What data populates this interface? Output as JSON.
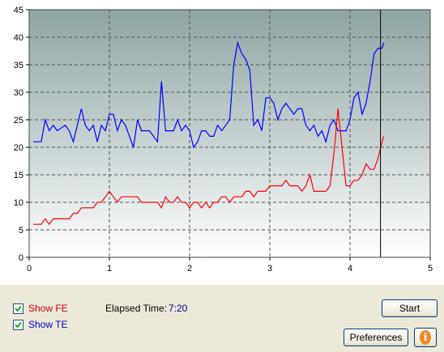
{
  "chart_data": {
    "type": "line",
    "xlim": [
      0,
      5
    ],
    "ylim": [
      0,
      45
    ],
    "xticks": [
      0,
      1,
      2,
      3,
      4,
      5
    ],
    "yticks": [
      0,
      5,
      10,
      15,
      20,
      25,
      30,
      35,
      40,
      45
    ],
    "grid": true,
    "cursor_x": 4.38,
    "series": [
      {
        "color": "#0000ff",
        "points": [
          [
            0.05,
            21
          ],
          [
            0.15,
            21
          ],
          [
            0.2,
            25
          ],
          [
            0.25,
            23
          ],
          [
            0.3,
            24
          ],
          [
            0.35,
            23
          ],
          [
            0.45,
            24
          ],
          [
            0.5,
            23
          ],
          [
            0.55,
            21
          ],
          [
            0.6,
            24
          ],
          [
            0.65,
            27
          ],
          [
            0.7,
            24
          ],
          [
            0.75,
            23
          ],
          [
            0.8,
            24
          ],
          [
            0.85,
            21
          ],
          [
            0.9,
            24
          ],
          [
            0.95,
            23
          ],
          [
            1.0,
            26
          ],
          [
            1.05,
            26
          ],
          [
            1.1,
            23
          ],
          [
            1.15,
            25
          ],
          [
            1.2,
            24
          ],
          [
            1.25,
            22
          ],
          [
            1.3,
            20
          ],
          [
            1.35,
            25
          ],
          [
            1.4,
            23
          ],
          [
            1.5,
            23
          ],
          [
            1.55,
            22
          ],
          [
            1.6,
            21
          ],
          [
            1.65,
            32
          ],
          [
            1.7,
            23
          ],
          [
            1.8,
            23
          ],
          [
            1.85,
            25
          ],
          [
            1.9,
            23
          ],
          [
            1.95,
            24
          ],
          [
            2.0,
            23
          ],
          [
            2.05,
            20
          ],
          [
            2.1,
            21
          ],
          [
            2.15,
            23
          ],
          [
            2.2,
            23
          ],
          [
            2.25,
            22
          ],
          [
            2.3,
            22
          ],
          [
            2.35,
            24
          ],
          [
            2.4,
            23
          ],
          [
            2.45,
            24
          ],
          [
            2.5,
            25
          ],
          [
            2.55,
            35
          ],
          [
            2.6,
            39
          ],
          [
            2.65,
            37
          ],
          [
            2.7,
            36
          ],
          [
            2.75,
            34
          ],
          [
            2.8,
            24
          ],
          [
            2.85,
            25
          ],
          [
            2.9,
            23
          ],
          [
            2.95,
            29
          ],
          [
            3.0,
            29
          ],
          [
            3.05,
            28
          ],
          [
            3.1,
            25
          ],
          [
            3.15,
            27
          ],
          [
            3.2,
            28
          ],
          [
            3.25,
            27
          ],
          [
            3.3,
            26
          ],
          [
            3.35,
            27
          ],
          [
            3.4,
            27
          ],
          [
            3.45,
            24
          ],
          [
            3.5,
            23
          ],
          [
            3.55,
            24
          ],
          [
            3.6,
            22
          ],
          [
            3.65,
            23
          ],
          [
            3.7,
            21
          ],
          [
            3.75,
            24
          ],
          [
            3.8,
            25
          ],
          [
            3.85,
            23
          ],
          [
            3.9,
            23
          ],
          [
            3.95,
            23
          ],
          [
            4.0,
            25
          ],
          [
            4.05,
            29
          ],
          [
            4.1,
            30
          ],
          [
            4.15,
            26
          ],
          [
            4.2,
            28
          ],
          [
            4.25,
            32
          ],
          [
            4.3,
            37
          ],
          [
            4.35,
            38
          ],
          [
            4.4,
            38
          ],
          [
            4.42,
            39
          ]
        ]
      },
      {
        "color": "#ff0000",
        "points": [
          [
            0.05,
            6
          ],
          [
            0.15,
            6
          ],
          [
            0.2,
            7
          ],
          [
            0.25,
            6
          ],
          [
            0.3,
            7
          ],
          [
            0.4,
            7
          ],
          [
            0.5,
            7
          ],
          [
            0.55,
            8
          ],
          [
            0.6,
            8
          ],
          [
            0.65,
            9
          ],
          [
            0.7,
            9
          ],
          [
            0.8,
            9
          ],
          [
            0.85,
            10
          ],
          [
            0.9,
            10
          ],
          [
            0.95,
            11
          ],
          [
            1.0,
            12
          ],
          [
            1.05,
            11
          ],
          [
            1.1,
            10
          ],
          [
            1.15,
            11
          ],
          [
            1.25,
            11
          ],
          [
            1.35,
            11
          ],
          [
            1.4,
            10
          ],
          [
            1.5,
            10
          ],
          [
            1.6,
            10
          ],
          [
            1.65,
            9
          ],
          [
            1.7,
            11
          ],
          [
            1.75,
            10
          ],
          [
            1.8,
            10
          ],
          [
            1.85,
            11
          ],
          [
            1.9,
            10
          ],
          [
            1.95,
            10
          ],
          [
            2.0,
            9
          ],
          [
            2.05,
            10
          ],
          [
            2.1,
            10
          ],
          [
            2.15,
            9
          ],
          [
            2.2,
            10
          ],
          [
            2.25,
            9
          ],
          [
            2.3,
            10
          ],
          [
            2.35,
            10
          ],
          [
            2.4,
            11
          ],
          [
            2.45,
            11
          ],
          [
            2.5,
            10
          ],
          [
            2.55,
            11
          ],
          [
            2.6,
            11
          ],
          [
            2.65,
            11
          ],
          [
            2.7,
            12
          ],
          [
            2.75,
            12
          ],
          [
            2.8,
            11
          ],
          [
            2.85,
            12
          ],
          [
            2.9,
            12
          ],
          [
            2.95,
            12
          ],
          [
            3.0,
            13
          ],
          [
            3.1,
            13
          ],
          [
            3.15,
            13
          ],
          [
            3.2,
            14
          ],
          [
            3.25,
            13
          ],
          [
            3.3,
            13
          ],
          [
            3.35,
            13
          ],
          [
            3.4,
            12
          ],
          [
            3.45,
            13
          ],
          [
            3.5,
            15
          ],
          [
            3.55,
            12
          ],
          [
            3.6,
            12
          ],
          [
            3.65,
            12
          ],
          [
            3.7,
            12
          ],
          [
            3.75,
            13
          ],
          [
            3.8,
            19
          ],
          [
            3.85,
            27
          ],
          [
            3.9,
            20
          ],
          [
            3.95,
            13
          ],
          [
            4.0,
            13
          ],
          [
            4.05,
            14
          ],
          [
            4.1,
            14
          ],
          [
            4.15,
            15
          ],
          [
            4.2,
            17
          ],
          [
            4.25,
            16
          ],
          [
            4.3,
            16
          ],
          [
            4.35,
            18
          ],
          [
            4.4,
            21
          ],
          [
            4.42,
            22
          ]
        ]
      }
    ]
  },
  "controls": {
    "show_fe_label": "Show FE",
    "show_te_label": "Show TE",
    "show_fe_checked": true,
    "show_te_checked": true,
    "elapsed_label": "Elapsed Time:",
    "elapsed_value": "7:20",
    "start_button": "Start",
    "preferences_button": "Preferences",
    "info_icon": "info-icon",
    "fe_color": "#cc0000",
    "te_color": "#0000cc",
    "elapsed_value_color": "#00008b"
  }
}
